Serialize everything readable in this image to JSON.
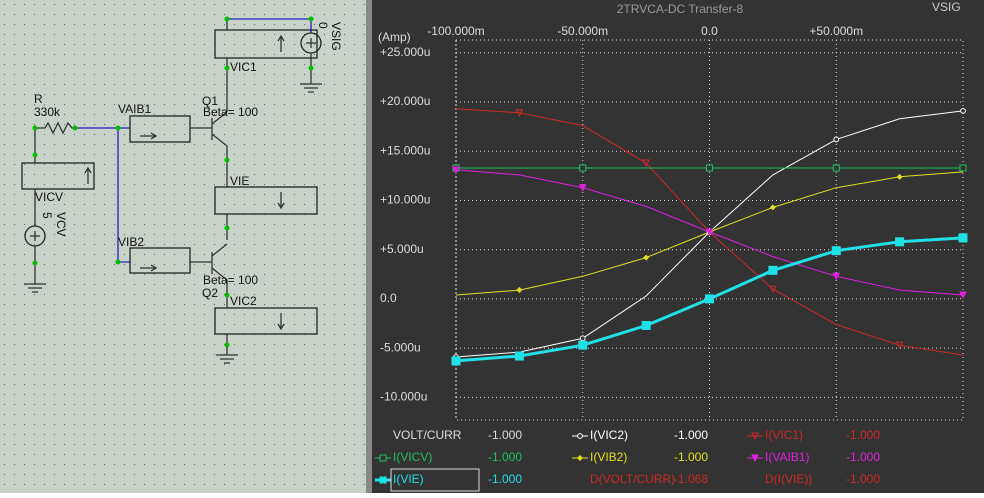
{
  "schematic": {
    "labels": {
      "r": "R",
      "r_value": "330k",
      "vaib1": "VAIB1",
      "q1": "Q1",
      "beta1": "Beta= 100",
      "vsig": "VSIG",
      "vsig_value": "0",
      "vic1": "VIC1",
      "vie": "VIE",
      "vicv": "VICV",
      "vcv_value": "5",
      "vcv": "VCV",
      "vib2": "VIB2",
      "beta2": "Beta= 100",
      "q2": "Q2",
      "vic2": "VIC2"
    }
  },
  "chart_data": {
    "type": "line",
    "title": "2TRVCA-DC Transfer-8",
    "corner_label": "VSIG",
    "y_unit_label": "(Amp)",
    "x": [
      -100,
      -75,
      -50,
      -25,
      0,
      25,
      50,
      75,
      100
    ],
    "xlim": [
      -100,
      100
    ],
    "xticks": [
      {
        "value": -100,
        "label": "-100.000m"
      },
      {
        "value": -50,
        "label": "-50.000m"
      },
      {
        "value": 0,
        "label": "0.0"
      },
      {
        "value": 50,
        "label": "+50.000m"
      }
    ],
    "ylim": [
      -12.3,
      26.3
    ],
    "yticks": [
      {
        "value": 25,
        "label": "+25.000u"
      },
      {
        "value": 20,
        "label": "+20.000u"
      },
      {
        "value": 15,
        "label": "+15.000u"
      },
      {
        "value": 10,
        "label": "+10.000u"
      },
      {
        "value": 5,
        "label": "+5.000u"
      },
      {
        "value": 0,
        "label": "0.0"
      },
      {
        "value": -5,
        "label": "-5.000u"
      },
      {
        "value": -10,
        "label": "-10.000u"
      }
    ],
    "grid": true,
    "series": [
      {
        "name": "I(VIC2)",
        "color": "#ffffff",
        "marker": "circle",
        "readout": "-1.000",
        "values": [
          -5.9,
          -5.4,
          -4.0,
          0.3,
          6.8,
          12.6,
          16.2,
          18.3,
          19.1
        ]
      },
      {
        "name": "I(VIC1)",
        "color": "#d02828",
        "marker": "triangle-down",
        "readout": "-1.000",
        "values": [
          19.3,
          18.9,
          17.6,
          13.8,
          6.8,
          1.0,
          -2.6,
          -4.7,
          -5.7
        ]
      },
      {
        "name": "I(VICV)",
        "color": "#20c060",
        "marker": "square",
        "readout": "-1.000",
        "values": [
          13.3,
          13.3,
          13.3,
          13.3,
          13.3,
          13.3,
          13.3,
          13.3,
          13.3
        ]
      },
      {
        "name": "I(VIB2)",
        "color": "#e0e020",
        "marker": "diamond",
        "readout": "-1.000",
        "values": [
          0.4,
          0.9,
          2.3,
          4.2,
          6.8,
          9.3,
          11.3,
          12.4,
          12.9
        ]
      },
      {
        "name": "I(VAIB1)",
        "color": "#e020e0",
        "marker": "triangle-down",
        "readout": "-1.000",
        "values": [
          13.1,
          12.6,
          11.3,
          9.4,
          6.8,
          4.3,
          2.3,
          0.9,
          0.4
        ]
      },
      {
        "name": "I(VIE)",
        "color": "#20e0e8",
        "marker": "square",
        "readout": "-1.000",
        "values": [
          -6.3,
          -5.8,
          -4.7,
          -2.7,
          0,
          2.9,
          4.9,
          5.8,
          6.2
        ]
      }
    ],
    "readouts": [
      {
        "name": "VOLT/CURR",
        "value": "-1.000"
      },
      {
        "name": "D(VOLT/CURR)",
        "value": "-1.068"
      },
      {
        "name": "D(I(VIE))",
        "value": "-1.000"
      }
    ]
  }
}
